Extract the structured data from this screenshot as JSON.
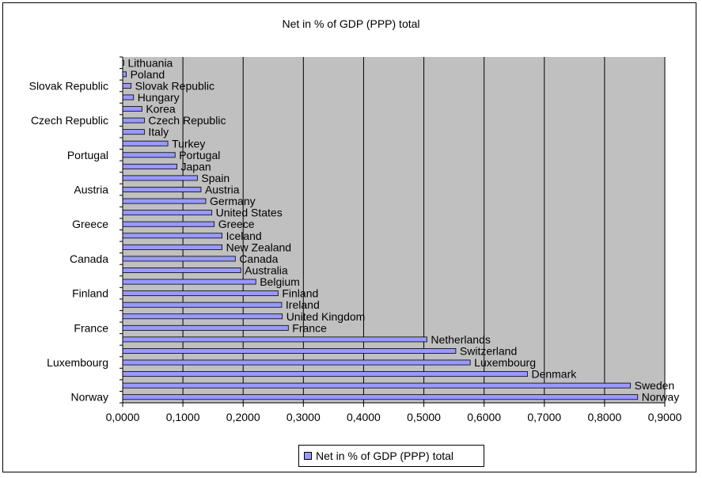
{
  "chart_data": {
    "type": "bar",
    "orientation": "horizontal",
    "title": "Net in % of GDP (PPP) total",
    "xlabel": "",
    "ylabel": "",
    "xlim": [
      0,
      0.9
    ],
    "x_ticks": [
      "0,0000",
      "0,1000",
      "0,2000",
      "0,3000",
      "0,4000",
      "0,5000",
      "0,6000",
      "0,7000",
      "0,8000",
      "0,9000"
    ],
    "y_tick_labels": [
      "Slovak Republic",
      "Czech Republic",
      "Portugal",
      "Austria",
      "Greece",
      "Canada",
      "Finland",
      "France",
      "Luxembourg",
      "Norway"
    ],
    "grid": true,
    "legend_position": "bottom",
    "colors": {
      "bar": "#9999ff",
      "plot_background": "#c0c0c0",
      "grid": "#000000"
    },
    "categories": [
      "Lithuania",
      "Poland",
      "Slovak Republic",
      "Hungary",
      "Korea",
      "Czech Republic",
      "Italy",
      "Turkey",
      "Portugal",
      "Japan",
      "Spain",
      "Austria",
      "Germany",
      "United States",
      "Greece",
      "Iceland",
      "New Zealand",
      "Canada",
      "Australia",
      "Belgium",
      "Finland",
      "Ireland",
      "United Kingdom",
      "France",
      "Netherlands",
      "Switzerland",
      "Luxembourg",
      "Denmark",
      "Sweden",
      "Norway"
    ],
    "series": [
      {
        "name": "Net in % of GDP (PPP) total",
        "values": [
          0.002,
          0.006,
          0.014,
          0.018,
          0.032,
          0.036,
          0.036,
          0.075,
          0.087,
          0.09,
          0.124,
          0.13,
          0.138,
          0.148,
          0.152,
          0.165,
          0.165,
          0.187,
          0.196,
          0.221,
          0.258,
          0.264,
          0.265,
          0.275,
          0.505,
          0.553,
          0.577,
          0.672,
          0.843,
          0.855
        ]
      }
    ]
  }
}
